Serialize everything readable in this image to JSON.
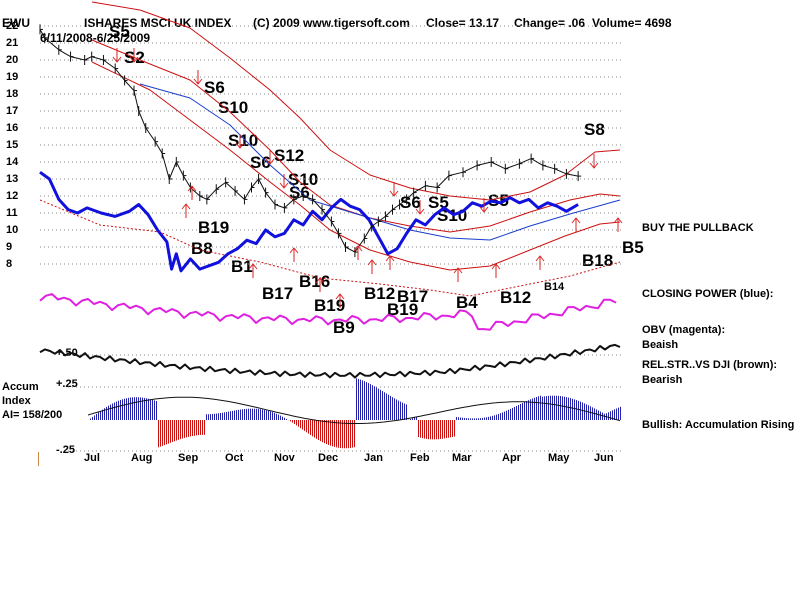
{
  "header": {
    "ticker": "EWU",
    "name": "ISHARES MSCI UK INDEX",
    "copyright": "(C) 2009 www.tigersoft.com",
    "close": "Close=  13.17",
    "change": "Change= .06",
    "volume": "Volume= 4698",
    "date_range": "6/11/2008-6/25/2009"
  },
  "side_labels": {
    "buy_pullback": "BUY THE PULLBACK",
    "closing_power": "CLOSING POWER (blue):",
    "obv_title": "OBV (magenta):",
    "obv_status": "Beaish",
    "relstr_title": "REL.STR..VS DJI (brown):",
    "relstr_status": "Bearish",
    "accum_status": "Bullish: Accumulation Rising"
  },
  "accum_panel": {
    "title_line1": "Accum",
    "title_line2": "Index",
    "ai_value": "AI= 158/200",
    "levels": [
      "+.50",
      "+.25",
      "-.25"
    ]
  },
  "chart_data": {
    "type": "line",
    "title": "ISHARES MSCI UK INDEX",
    "y_ticks": [
      "22",
      "21",
      "20",
      "19",
      "18",
      "17",
      "16",
      "15",
      "14",
      "13",
      "12",
      "11",
      "10",
      "9",
      "8"
    ],
    "ylim": [
      8,
      22
    ],
    "x_ticks": [
      "Jul",
      "Aug",
      "Sep",
      "Oct",
      "Nov",
      "Dec",
      "Jan",
      "Feb",
      "Mar",
      "Apr",
      "May",
      "Jun"
    ],
    "grid": true,
    "price_series": {
      "name": "EWU",
      "x": [
        0,
        0.1,
        0.4,
        0.65,
        0.95,
        1.1,
        1.35,
        1.6,
        1.8,
        2.0,
        2.1,
        2.25,
        2.45,
        2.6,
        2.75,
        2.9,
        3.05,
        3.2,
        3.4,
        3.55,
        3.75,
        3.95,
        4.15,
        4.35,
        4.5,
        4.65,
        4.8,
        5.0,
        5.2,
        5.4,
        5.6,
        5.8,
        6.0,
        6.2,
        6.35,
        6.5,
        6.7,
        6.9,
        7.05,
        7.2,
        7.35,
        7.5,
        7.65,
        7.8,
        7.95,
        8.2,
        8.45,
        8.7,
        9.0,
        9.3,
        9.6,
        9.9,
        10.2,
        10.45,
        10.7,
        10.95,
        11.2,
        11.45
      ],
      "values": [
        21.8,
        21.3,
        20.6,
        20.2,
        20.0,
        20.2,
        20.0,
        19.5,
        18.8,
        18.2,
        17.0,
        16.0,
        15.2,
        14.5,
        13.0,
        14.0,
        13.2,
        12.5,
        12.0,
        11.8,
        12.4,
        12.8,
        12.3,
        11.8,
        12.5,
        13.0,
        12.2,
        11.5,
        11.3,
        11.8,
        12.0,
        11.8,
        11.2,
        10.5,
        9.8,
        9.0,
        8.7,
        9.5,
        10.2,
        10.5,
        10.8,
        11.2,
        11.5,
        11.8,
        12.2,
        12.6,
        12.5,
        13.2,
        13.4,
        13.8,
        14.0,
        13.6,
        13.9,
        14.2,
        13.8,
        13.6,
        13.3,
        13.17
      ]
    },
    "closing_power": {
      "name": "CLOSING POWER (blue)",
      "x": [
        0,
        0.2,
        0.4,
        0.6,
        0.8,
        1.0,
        1.3,
        1.6,
        1.9,
        2.1,
        2.3,
        2.5,
        2.7,
        2.8,
        2.9,
        3.0,
        3.2,
        3.4,
        3.6,
        3.8,
        4.0,
        4.2,
        4.4,
        4.6,
        4.8,
        5.0,
        5.2,
        5.4,
        5.6,
        5.8,
        6.0,
        6.2,
        6.4,
        6.6,
        6.8,
        7.0,
        7.2,
        7.4,
        7.6,
        7.8,
        8.0,
        8.2,
        8.4,
        8.6,
        8.8,
        9.0,
        9.2,
        9.4,
        9.6,
        9.8,
        10.0,
        10.2,
        10.4,
        10.6,
        10.8,
        11.0,
        11.2,
        11.45
      ],
      "values": [
        13.4,
        13.0,
        11.8,
        11.2,
        11.0,
        11.3,
        11.0,
        10.8,
        11.1,
        11.5,
        10.9,
        10.0,
        9.3,
        7.7,
        8.6,
        7.6,
        8.3,
        7.7,
        7.9,
        8.1,
        8.6,
        8.9,
        9.4,
        9.2,
        10.0,
        9.6,
        9.8,
        10.6,
        10.3,
        11.1,
        10.6,
        11.3,
        11.8,
        11.4,
        11.2,
        10.6,
        9.6,
        8.6,
        8.9,
        9.8,
        10.6,
        10.3,
        10.9,
        11.3,
        10.9,
        11.1,
        11.6,
        11.4,
        11.7,
        11.6,
        11.9,
        11.6,
        11.8,
        11.3,
        11.6,
        11.4,
        11.1,
        11.5
      ]
    },
    "signals_sell": [
      "S5",
      "S2",
      "S6",
      "S10",
      "S10",
      "S6",
      "S12",
      "S10",
      "S6",
      "S6",
      "S5",
      "S10",
      "S5",
      "S8"
    ],
    "signals_buy": [
      "B8",
      "B19",
      "B1",
      "B17",
      "B16",
      "B19",
      "B9",
      "B12",
      "B17",
      "B19",
      "B4",
      "B12",
      "B14",
      "B18",
      "B5"
    ]
  }
}
